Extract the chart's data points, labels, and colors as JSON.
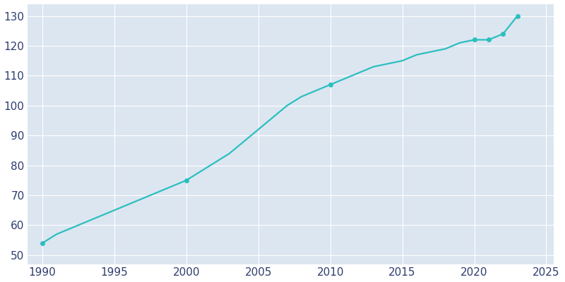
{
  "years": [
    1990,
    1991,
    1992,
    1993,
    1994,
    1995,
    1996,
    1997,
    1998,
    1999,
    2000,
    2001,
    2002,
    2003,
    2004,
    2005,
    2006,
    2007,
    2008,
    2009,
    2010,
    2011,
    2012,
    2013,
    2014,
    2015,
    2016,
    2017,
    2018,
    2019,
    2020,
    2021,
    2022,
    2023
  ],
  "population": [
    54,
    57,
    59,
    61,
    63,
    65,
    67,
    69,
    71,
    73,
    75,
    78,
    81,
    84,
    88,
    92,
    96,
    100,
    103,
    105,
    107,
    109,
    111,
    113,
    114,
    115,
    117,
    118,
    119,
    121,
    122,
    122,
    124,
    130
  ],
  "line_color": "#2bbfbf",
  "marker_color": "#2bbfbf",
  "bg_color": "#ffffff",
  "plot_bg_color": "#dce6f1",
  "grid_color": "#ffffff",
  "tick_label_color": "#2e3d6e",
  "xlim": [
    1989.0,
    2025.5
  ],
  "ylim": [
    47,
    134
  ],
  "xticks": [
    1990,
    1995,
    2000,
    2005,
    2010,
    2015,
    2020,
    2025
  ],
  "yticks": [
    50,
    60,
    70,
    80,
    90,
    100,
    110,
    120,
    130
  ],
  "marker_years": [
    1990,
    2000,
    2010,
    2020,
    2021,
    2022,
    2023
  ],
  "marker_values": [
    54,
    75,
    107,
    122,
    122,
    124,
    130
  ]
}
